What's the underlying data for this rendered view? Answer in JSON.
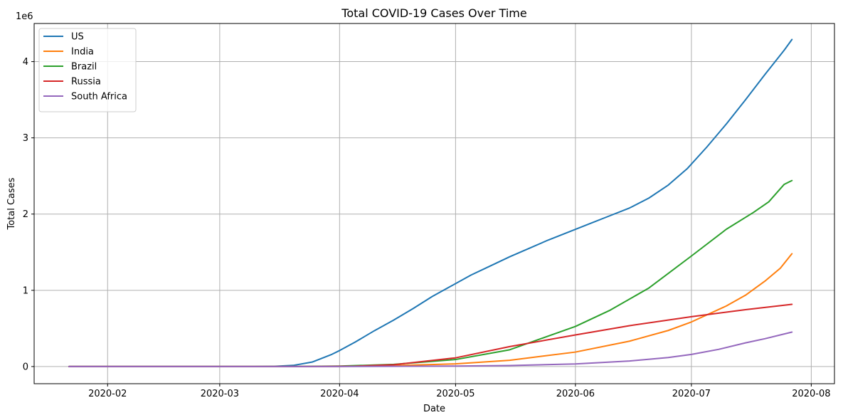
{
  "chart_data": {
    "type": "line",
    "title": "Total COVID-19 Cases Over Time",
    "xlabel": "Date",
    "ylabel": "Total Cases",
    "y_offset_text": "1e6",
    "xlim": [
      "2020-01-13",
      "2020-08-07"
    ],
    "ylim": [
      -225000,
      4500000
    ],
    "x_ticks": [
      "2020-02-01",
      "2020-03-01",
      "2020-04-01",
      "2020-05-01",
      "2020-06-01",
      "2020-07-01",
      "2020-08-01"
    ],
    "x_tick_labels": [
      "2020-02",
      "2020-03",
      "2020-04",
      "2020-05",
      "2020-06",
      "2020-07",
      "2020-08"
    ],
    "y_ticks": [
      0,
      1000000,
      2000000,
      3000000,
      4000000
    ],
    "y_tick_labels": [
      "0",
      "1",
      "2",
      "3",
      "4"
    ],
    "grid": true,
    "legend_position": "top-left",
    "series": [
      {
        "name": "US",
        "color": "#1f77b4",
        "points": [
          [
            "2020-01-22",
            0
          ],
          [
            "2020-03-01",
            0
          ],
          [
            "2020-03-10",
            500
          ],
          [
            "2020-03-15",
            3000
          ],
          [
            "2020-03-20",
            15000
          ],
          [
            "2020-03-25",
            60000
          ],
          [
            "2020-03-30",
            160000
          ],
          [
            "2020-04-01",
            210000
          ],
          [
            "2020-04-05",
            320000
          ],
          [
            "2020-04-10",
            470000
          ],
          [
            "2020-04-15",
            610000
          ],
          [
            "2020-04-20",
            760000
          ],
          [
            "2020-04-25",
            920000
          ],
          [
            "2020-04-30",
            1060000
          ],
          [
            "2020-05-05",
            1200000
          ],
          [
            "2020-05-10",
            1320000
          ],
          [
            "2020-05-15",
            1440000
          ],
          [
            "2020-05-20",
            1550000
          ],
          [
            "2020-05-25",
            1660000
          ],
          [
            "2020-05-31",
            1780000
          ],
          [
            "2020-06-05",
            1880000
          ],
          [
            "2020-06-10",
            1980000
          ],
          [
            "2020-06-15",
            2080000
          ],
          [
            "2020-06-20",
            2210000
          ],
          [
            "2020-06-25",
            2380000
          ],
          [
            "2020-06-30",
            2600000
          ],
          [
            "2020-07-05",
            2880000
          ],
          [
            "2020-07-10",
            3180000
          ],
          [
            "2020-07-15",
            3500000
          ],
          [
            "2020-07-20",
            3830000
          ],
          [
            "2020-07-25",
            4150000
          ],
          [
            "2020-07-27",
            4290000
          ]
        ]
      },
      {
        "name": "India",
        "color": "#ff7f0e",
        "points": [
          [
            "2020-01-22",
            0
          ],
          [
            "2020-03-20",
            0
          ],
          [
            "2020-04-01",
            2000
          ],
          [
            "2020-04-15",
            12000
          ],
          [
            "2020-05-01",
            35000
          ],
          [
            "2020-05-15",
            82000
          ],
          [
            "2020-06-01",
            190000
          ],
          [
            "2020-06-15",
            333000
          ],
          [
            "2020-06-25",
            473000
          ],
          [
            "2020-07-01",
            585000
          ],
          [
            "2020-07-10",
            794000
          ],
          [
            "2020-07-15",
            936000
          ],
          [
            "2020-07-20",
            1120000
          ],
          [
            "2020-07-24",
            1290000
          ],
          [
            "2020-07-27",
            1480000
          ]
        ]
      },
      {
        "name": "Brazil",
        "color": "#2ca02c",
        "points": [
          [
            "2020-01-22",
            0
          ],
          [
            "2020-03-20",
            0
          ],
          [
            "2020-04-01",
            6000
          ],
          [
            "2020-04-15",
            28000
          ],
          [
            "2020-05-01",
            92000
          ],
          [
            "2020-05-15",
            220000
          ],
          [
            "2020-06-01",
            526000
          ],
          [
            "2020-06-10",
            740000
          ],
          [
            "2020-06-20",
            1030000
          ],
          [
            "2020-07-01",
            1450000
          ],
          [
            "2020-07-10",
            1800000
          ],
          [
            "2020-07-17",
            2020000
          ],
          [
            "2020-07-21",
            2160000
          ],
          [
            "2020-07-25",
            2390000
          ],
          [
            "2020-07-27",
            2440000
          ]
        ]
      },
      {
        "name": "Russia",
        "color": "#d62728",
        "points": [
          [
            "2020-01-22",
            0
          ],
          [
            "2020-03-25",
            0
          ],
          [
            "2020-04-05",
            5000
          ],
          [
            "2020-04-15",
            24000
          ],
          [
            "2020-05-01",
            114000
          ],
          [
            "2020-05-15",
            262000
          ],
          [
            "2020-06-01",
            415000
          ],
          [
            "2020-06-15",
            536000
          ],
          [
            "2020-07-01",
            654000
          ],
          [
            "2020-07-15",
            746000
          ],
          [
            "2020-07-27",
            816000
          ]
        ]
      },
      {
        "name": "South Africa",
        "color": "#9467bd",
        "points": [
          [
            "2020-01-22",
            0
          ],
          [
            "2020-04-01",
            0
          ],
          [
            "2020-05-01",
            6000
          ],
          [
            "2020-05-15",
            13000
          ],
          [
            "2020-06-01",
            34000
          ],
          [
            "2020-06-15",
            73000
          ],
          [
            "2020-06-25",
            118000
          ],
          [
            "2020-07-01",
            159000
          ],
          [
            "2020-07-08",
            225000
          ],
          [
            "2020-07-15",
            311000
          ],
          [
            "2020-07-20",
            365000
          ],
          [
            "2020-07-27",
            452000
          ]
        ]
      }
    ]
  }
}
